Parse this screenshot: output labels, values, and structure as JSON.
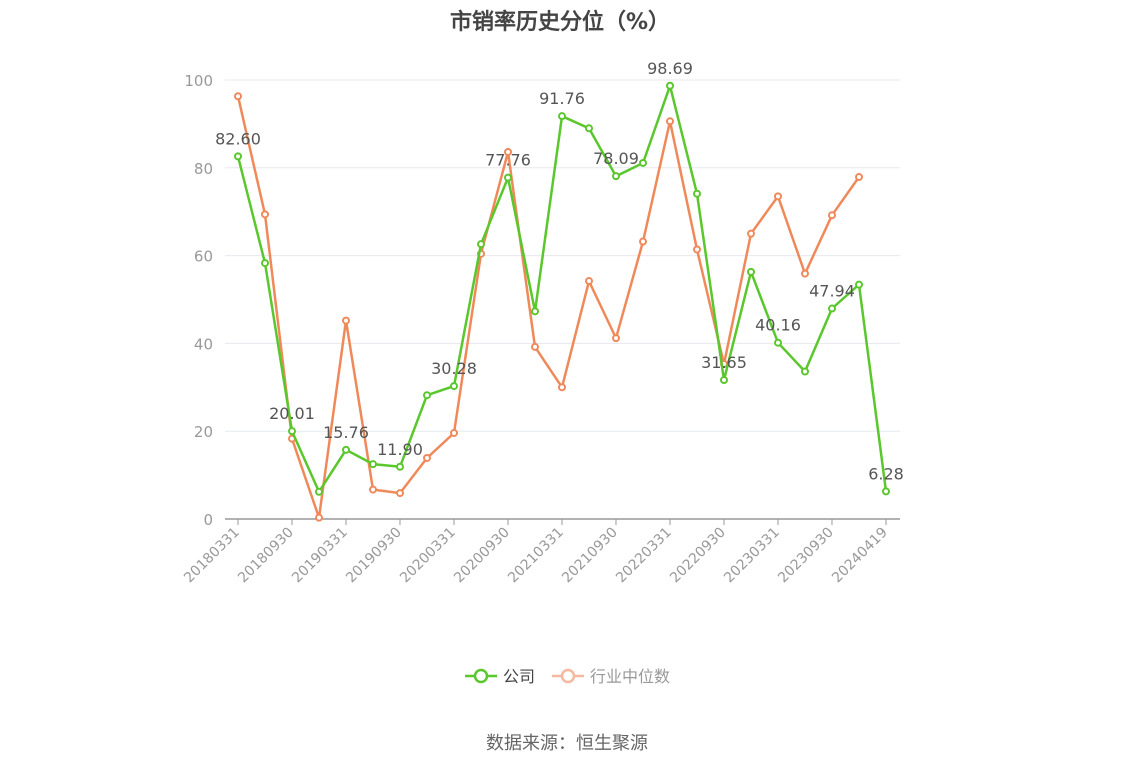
{
  "chart_data": {
    "type": "line",
    "title": "市销率历史分位（%）",
    "source_text": "数据来源：恒生聚源",
    "xlabel": "",
    "ylabel": "",
    "ylim": [
      0,
      100
    ],
    "y_ticks": [
      0,
      20,
      40,
      60,
      80,
      100
    ],
    "grid": true,
    "legend_position": "bottom",
    "x_tick_labels": [
      "20180331",
      "20180930",
      "20190331",
      "20190930",
      "20200331",
      "20200930",
      "20210331",
      "20210930",
      "20220331",
      "20220930",
      "20230331",
      "20230930",
      "20240419"
    ],
    "x": [
      "20180331",
      "20180630",
      "20180930",
      "20181231",
      "20190331",
      "20190630",
      "20190930",
      "20191231",
      "20200331",
      "20200630",
      "20200930",
      "20201231",
      "20210331",
      "20210630",
      "20210930",
      "20211231",
      "20220331",
      "20220630",
      "20220930",
      "20221231",
      "20230331",
      "20230630",
      "20230930",
      "20231231",
      "20240419"
    ],
    "series": [
      {
        "name": "公司",
        "color": "#5ac72d",
        "values": [
          82.6,
          58.3,
          20.01,
          6.2,
          15.76,
          12.5,
          11.9,
          28.2,
          30.28,
          62.6,
          77.76,
          47.3,
          91.76,
          89.0,
          78.09,
          81.1,
          98.69,
          74.1,
          31.65,
          56.3,
          40.16,
          33.6,
          47.94,
          53.4,
          6.28
        ],
        "labels": {
          "0": "82.60",
          "2": "20.01",
          "4": "15.76",
          "6": "11.90",
          "8": "30.28",
          "10": "77.76",
          "12": "91.76",
          "14": "78.09",
          "16": "98.69",
          "18": "31.65",
          "20": "40.16",
          "22": "47.94",
          "24": "6.28"
        }
      },
      {
        "name": "行业中位数",
        "color": "#f0895a",
        "values": [
          96.3,
          69.4,
          18.3,
          0.3,
          45.2,
          6.7,
          5.9,
          13.9,
          19.6,
          60.4,
          83.6,
          39.2,
          30.0,
          54.2,
          41.2,
          63.2,
          90.6,
          61.4,
          35.3,
          65.0,
          73.5,
          55.9,
          69.2,
          77.9,
          null
        ]
      }
    ]
  }
}
